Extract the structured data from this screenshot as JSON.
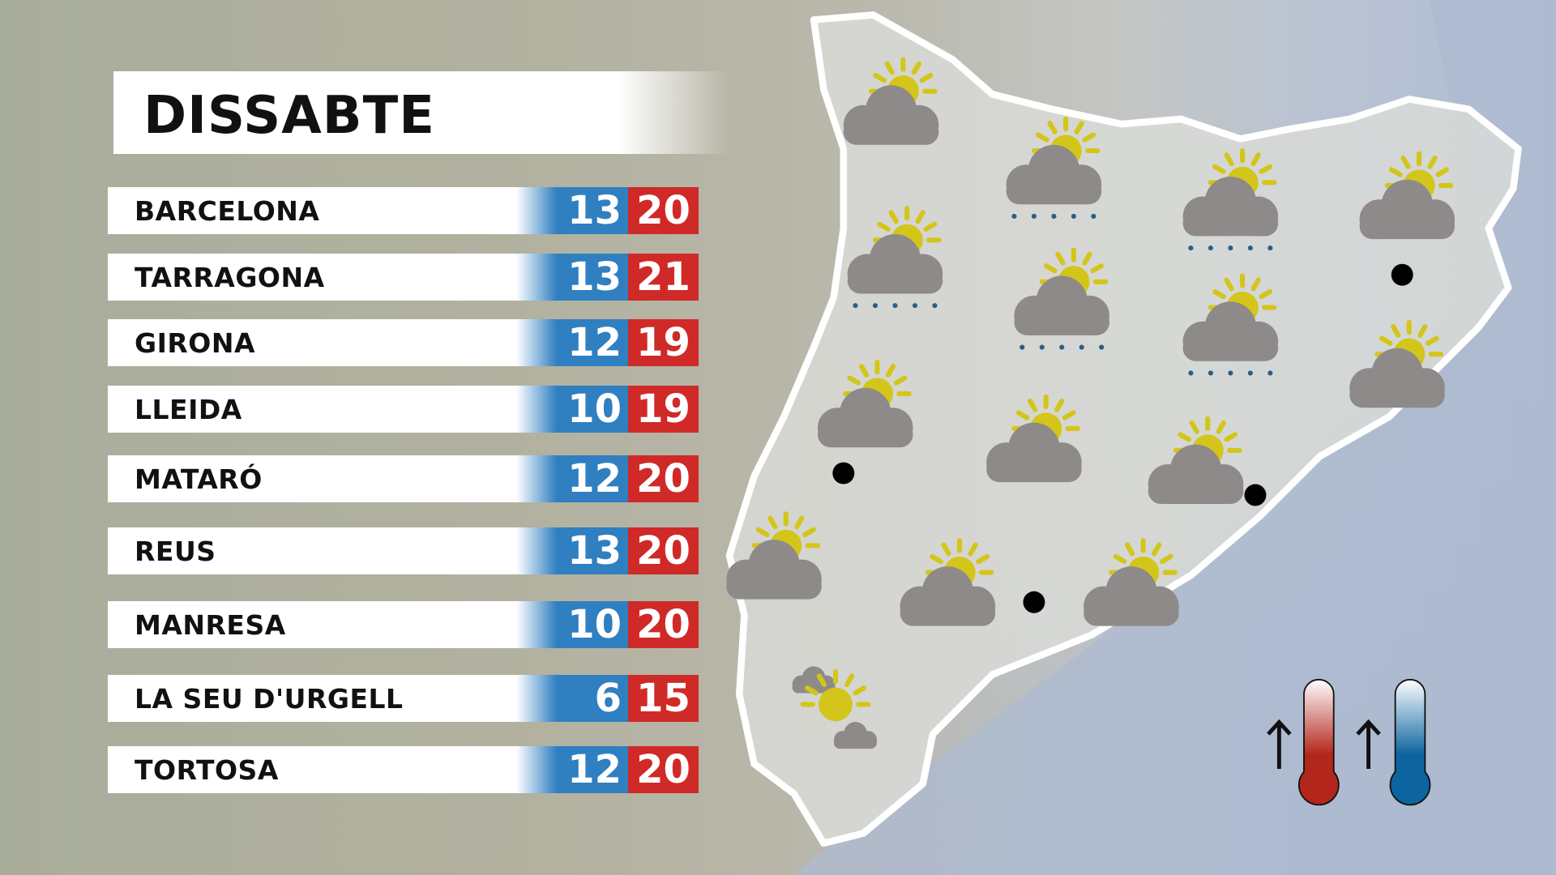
{
  "title": "DISSABTE",
  "colors": {
    "min": "#2f7fc1",
    "max": "#cf2a27",
    "sun": "#d4c51a",
    "cloud": "#8e8a8a"
  },
  "cities": [
    {
      "name": "BARCELONA",
      "min": "13",
      "max": "20"
    },
    {
      "name": "TARRAGONA",
      "min": "13",
      "max": "21"
    },
    {
      "name": "GIRONA",
      "min": "12",
      "max": "19"
    },
    {
      "name": "LLEIDA",
      "min": "10",
      "max": "19"
    },
    {
      "name": "MATARÓ",
      "min": "12",
      "max": "20"
    },
    {
      "name": "REUS",
      "min": "13",
      "max": "20"
    },
    {
      "name": "MANRESA",
      "min": "10",
      "max": "20"
    },
    {
      "name": "LA SEU D'URGELL",
      "min": "6",
      "max": "15"
    },
    {
      "name": "TORTOSA",
      "min": "12",
      "max": "20"
    }
  ],
  "map_icons": [
    "partly-cloudy",
    "cloud-rain",
    "cloud-rain",
    "partly-cloudy",
    "cloud-rain",
    "cloud-rain",
    "cloud-rain",
    "partly-cloudy",
    "partly-cloudy",
    "partly-cloudy",
    "partly-cloudy",
    "partly-cloudy",
    "partly-cloudy",
    "partly-cloudy",
    "sun-clouds"
  ],
  "legend": {
    "max_icon": "thermometer-max-icon",
    "min_icon": "thermometer-min-icon",
    "arrow": "arrow-up-icon"
  }
}
